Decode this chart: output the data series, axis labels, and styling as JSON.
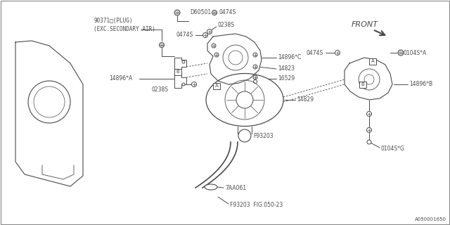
{
  "bg_color": "#ffffff",
  "line_color": "#4a4a4a",
  "fig_width": 6.4,
  "fig_height": 3.2,
  "dpi": 100,
  "labels": {
    "plug": "90371□(PLUG)\n(EXC.SECONDARY AIR)",
    "D60501": "D60501",
    "0474S_top": "0474S",
    "0474S_mid": "0474S",
    "0474S_right": "0474S",
    "0238S_top": "0238S",
    "0238S_left": "0238S",
    "14896C": "14896*C",
    "14823": "14823",
    "16529": "16529",
    "14896A": "14896*A",
    "14829": "14829",
    "F93203_mid": "F93203",
    "7AA061": "7AA061",
    "F93203_bot": "F93203  FIG.050-23",
    "0104S_A": "0104S*A",
    "0104S_G": "0104S*G",
    "14896B": "14896*B",
    "FRONT": "FRONT",
    "A050001650": "A050001650"
  },
  "font_size": 6.0,
  "small_font": 5.5
}
